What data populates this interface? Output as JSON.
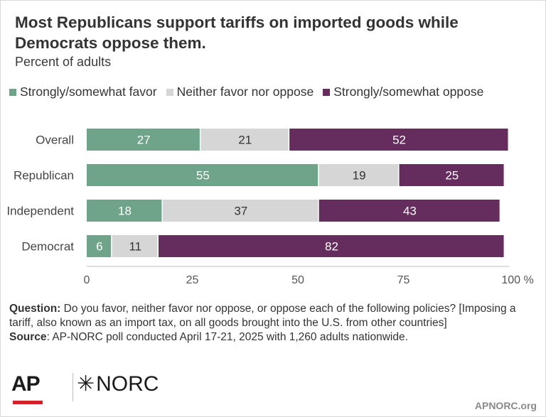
{
  "title": "Most Republicans support tariffs on imported goods while Democrats oppose them.",
  "subtitle": "Percent of adults",
  "legend": [
    {
      "label": "Strongly/somewhat favor",
      "color": "#6fa38a"
    },
    {
      "label": "Neither favor nor oppose",
      "color": "#d6d6d6"
    },
    {
      "label": "Strongly/somewhat oppose",
      "color": "#652d5e"
    }
  ],
  "chart_data": {
    "type": "bar",
    "orientation": "horizontal",
    "stacked": true,
    "categories": [
      "Overall",
      "Republican",
      "Independent",
      "Democrat"
    ],
    "series": [
      {
        "name": "Strongly/somewhat favor",
        "values": [
          27,
          55,
          18,
          6
        ],
        "color": "#6fa38a"
      },
      {
        "name": "Neither favor nor oppose",
        "values": [
          21,
          19,
          37,
          11
        ],
        "color": "#d6d6d6"
      },
      {
        "name": "Strongly/somewhat oppose",
        "values": [
          52,
          25,
          43,
          82
        ],
        "color": "#652d5e"
      }
    ],
    "xlim": [
      0,
      100
    ],
    "xticks": [
      "0",
      "25",
      "50",
      "75",
      "100 %"
    ],
    "grid": false,
    "legend_position": "top"
  },
  "notes": {
    "question_label": "Question:",
    "question_text": "  Do you favor, neither favor nor oppose, or oppose each of the following policies? [Imposing a tariff, also known as an import tax, on all goods brought into the U.S. from other countries]",
    "source_label": "Source",
    "source_text": ": AP-NORC poll conducted April 17-21, 2025 with 1,260 adults nationwide."
  },
  "logos": {
    "ap": "AP",
    "norc": "NORC",
    "norc_mark": "✳"
  },
  "site": "APNORC.org"
}
